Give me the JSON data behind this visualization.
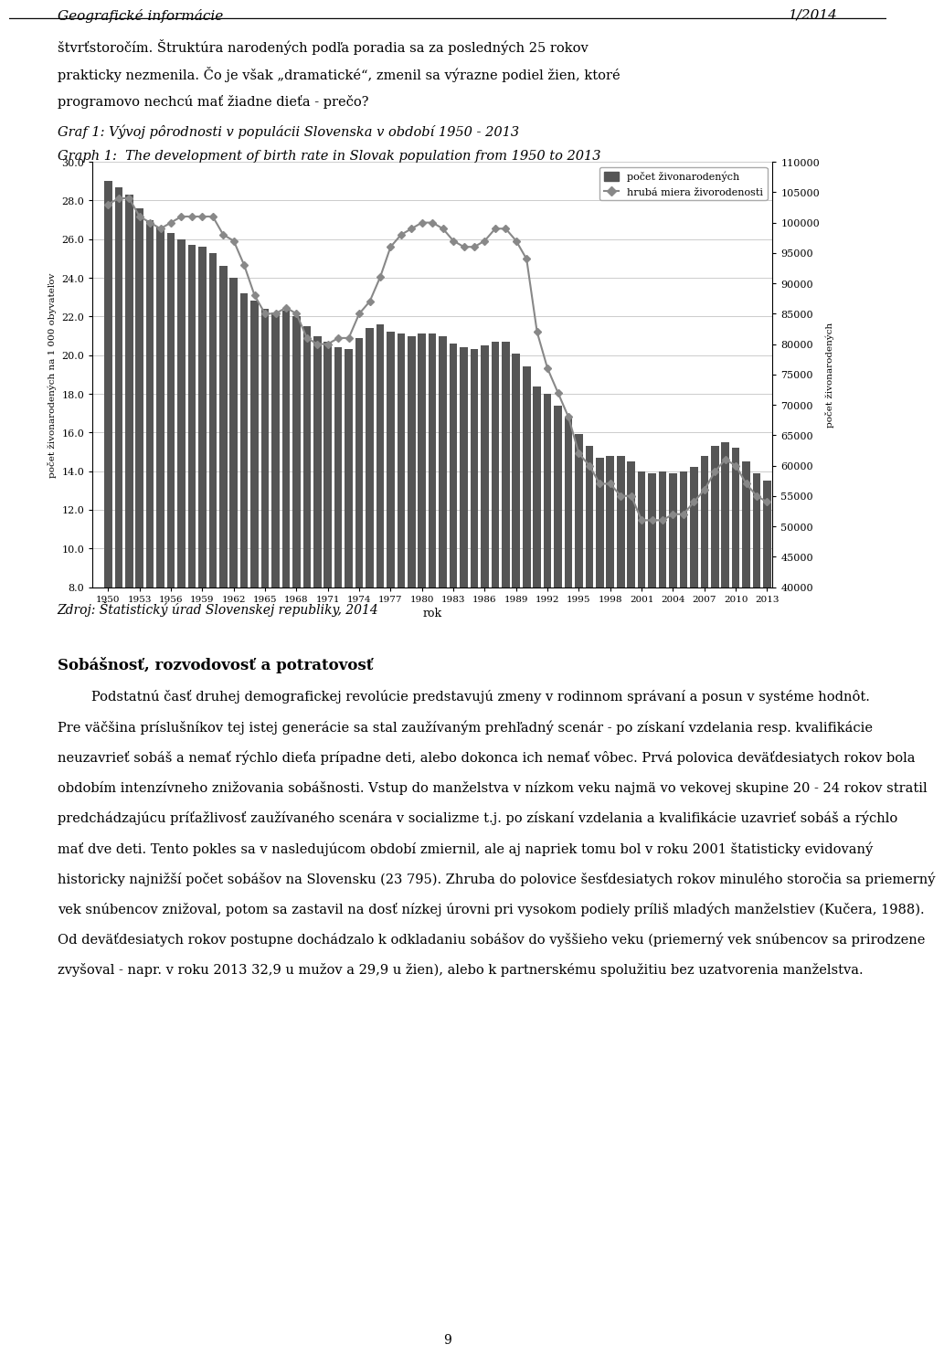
{
  "header_left": "Geografické informácie",
  "header_right": "1/2014",
  "para1_line1": "štvrťstoročím. Štruktúra narodených podľa poradia sa za posledných 25 rokov",
  "para1_line2": "prakticky nezmenila. Čo je však „dramatické“, zmenil sa výrazne podiel žien, ktoré",
  "para1_line3": "programovo nechcú mať žiadne dieťa - prečo?",
  "chart_title_sk": "Graf 1: Vývoj pôrodnosti v populácii Slovenska v období 1950 - 2013",
  "chart_title_en": "Graph 1:  The development of birth rate in Slovak population from 1950 to 2013",
  "years": [
    1950,
    1951,
    1952,
    1953,
    1954,
    1955,
    1956,
    1957,
    1958,
    1959,
    1960,
    1961,
    1962,
    1963,
    1964,
    1965,
    1966,
    1967,
    1968,
    1969,
    1970,
    1971,
    1972,
    1973,
    1974,
    1975,
    1976,
    1977,
    1978,
    1979,
    1980,
    1981,
    1982,
    1983,
    1984,
    1985,
    1986,
    1987,
    1988,
    1989,
    1990,
    1991,
    1992,
    1993,
    1994,
    1995,
    1996,
    1997,
    1998,
    1999,
    2000,
    2001,
    2002,
    2003,
    2004,
    2005,
    2006,
    2007,
    2008,
    2009,
    2010,
    2011,
    2012,
    2013
  ],
  "birth_count": [
    103000,
    104000,
    104000,
    101000,
    100000,
    99000,
    100000,
    101000,
    101000,
    101000,
    101000,
    98000,
    97000,
    93000,
    88000,
    85000,
    85000,
    86000,
    85000,
    81000,
    80000,
    80000,
    81000,
    81000,
    85000,
    87000,
    91000,
    96000,
    98000,
    99000,
    100000,
    100000,
    99000,
    97000,
    96000,
    96000,
    97000,
    99000,
    99000,
    97000,
    94000,
    82000,
    76000,
    72000,
    68000,
    62000,
    60000,
    57000,
    57000,
    55000,
    55000,
    51000,
    51000,
    51000,
    52000,
    52000,
    54000,
    56000,
    59000,
    61000,
    60000,
    57000,
    55000,
    54000
  ],
  "birth_rate": [
    29.0,
    28.7,
    28.3,
    27.6,
    27.0,
    26.6,
    26.3,
    26.0,
    25.7,
    25.6,
    25.3,
    24.6,
    24.0,
    23.2,
    22.8,
    22.4,
    22.2,
    22.3,
    22.0,
    21.5,
    21.0,
    20.7,
    20.4,
    20.3,
    20.9,
    21.4,
    21.6,
    21.2,
    21.1,
    21.0,
    21.1,
    21.1,
    21.0,
    20.6,
    20.4,
    20.3,
    20.5,
    20.7,
    20.7,
    20.1,
    19.4,
    18.4,
    18.0,
    17.4,
    16.8,
    15.9,
    15.3,
    14.7,
    14.8,
    14.8,
    14.5,
    14.0,
    13.9,
    14.0,
    13.9,
    14.0,
    14.2,
    14.8,
    15.3,
    15.5,
    15.2,
    14.5,
    13.9,
    13.5
  ],
  "ylabel_left": "počet živonarodených na 1 000 obyvateľov",
  "ylabel_right": "počet živonarodených",
  "xlabel": "rok",
  "source": "Zdroj: Štatistický úrad Slovenskej republiky, 2014",
  "legend1": "počet živonarodených",
  "legend2": "hrubá miera živorodenosti",
  "ylim_left": [
    8.0,
    30.0
  ],
  "ylim_right": [
    40000,
    110000
  ],
  "yticks_left": [
    8.0,
    10.0,
    12.0,
    14.0,
    16.0,
    18.0,
    20.0,
    22.0,
    24.0,
    26.0,
    28.0,
    30.0
  ],
  "yticks_right": [
    40000,
    45000,
    50000,
    55000,
    60000,
    65000,
    70000,
    75000,
    80000,
    85000,
    90000,
    95000,
    100000,
    105000,
    110000
  ],
  "heading2": "Sobášnosť, rozvodovosť a potratovosť",
  "body2_lines": [
    "        Podstatnú časť druhej demografickej revolúcie predstavujú zmeny v rodinnom správaní a posun v systéme hodnôt.",
    "Pre väčšina príslušníkov tej istej generácie sa stal zaužívaným prehľadný scenár - po získaní vzdelania resp. kvalifikácie",
    "neuzavrieť sobáš a nemať rýchlo dieťa prípadne deti, alebo dokonca ich nemať vôbec. Prvá polovica deväťdesiatych rokov bola",
    "obdobím intenzívneho znižovania sobášnosti. Vstup do manželstva v nízkom veku najmä vo vekovej skupine 20 - 24 rokov stratil",
    "predchádzajúcu príťažlivosť zaužívaného scenára v socializme t.j. po získaní vzdelania a kvalifikácie uzavrieť sobáš a rýchlo",
    "mať dve deti. Tento pokles sa v nasledujúcom období zmiernil, ale aj napriek tomu bol v roku 2001 štatisticky evidovaný",
    "historicky najnižší počet sobášov na Slovensku (23 795). Zhruba do polovice šesťdesiatych rokov minulého storočia sa priemerný",
    "vek snúbencov znižoval, potom sa zastavil na dosť nízkej úrovni pri vysokom podiely príliš mladých manželstiev (Kučera, 1988).",
    "Od deväťdesiatych rokov postupne dochádzalo k odkladaniu sobášov do vyššieho veku (priemerný vek snúbencov sa prirodzene",
    "zvyšoval - napr. v roku 2013 32,9 u mužov a 29,9 u žien), alebo k partnerskému spolužitiu bez uzatvorenia manželstva."
  ],
  "page_number": "9",
  "bar_color": "#555555",
  "line_color": "#888888",
  "background_color": "#ffffff",
  "grid_color": "#cccccc",
  "x_tick_years": [
    1950,
    1953,
    1956,
    1959,
    1962,
    1965,
    1968,
    1971,
    1974,
    1977,
    1980,
    1983,
    1986,
    1989,
    1992,
    1995,
    1998,
    2001,
    2004,
    2007,
    2010,
    2013
  ]
}
